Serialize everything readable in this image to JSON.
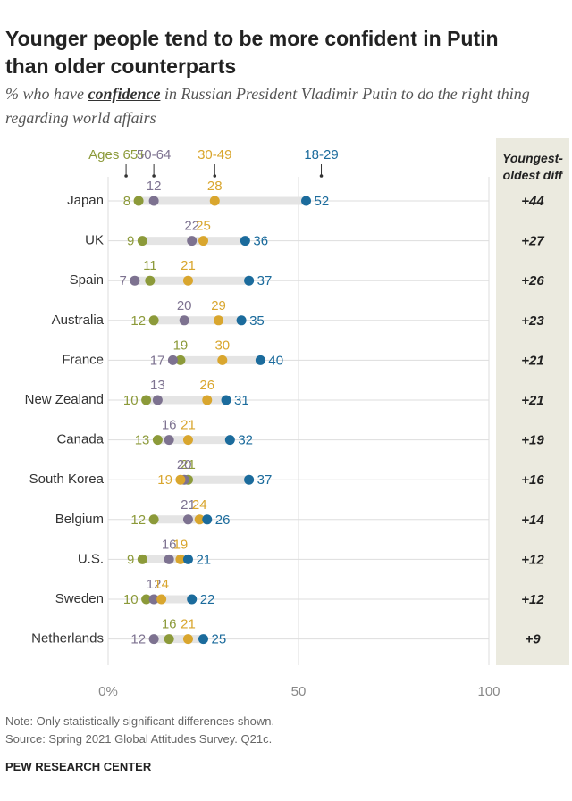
{
  "chart_data": {
    "type": "dot",
    "title": "Younger people tend to be more confident in Putin than older counterparts",
    "subtitle": [
      "% who have ",
      "confidence",
      " in Russian President Vladimir Putin to do the right thing regarding world affairs"
    ],
    "categories": [
      "Japan",
      "UK",
      "Spain",
      "Australia",
      "France",
      "New Zealand",
      "Canada",
      "South Korea",
      "Belgium",
      "U.S.",
      "Sweden",
      "Netherlands"
    ],
    "series": [
      {
        "name": "Ages 65+",
        "color": "#8c9a3a",
        "values": [
          8,
          9,
          11,
          12,
          19,
          10,
          13,
          21,
          12,
          9,
          10,
          16
        ]
      },
      {
        "name": "50-64",
        "color": "#7d7290",
        "values": [
          12,
          22,
          7,
          20,
          17,
          13,
          16,
          20,
          21,
          16,
          12,
          12
        ]
      },
      {
        "name": "30-49",
        "color": "#d9a62e",
        "values": [
          28,
          25,
          21,
          29,
          30,
          26,
          21,
          19,
          24,
          19,
          14,
          21
        ]
      },
      {
        "name": "18-29",
        "color": "#1b6b9c",
        "values": [
          52,
          36,
          37,
          35,
          40,
          31,
          32,
          37,
          26,
          21,
          22,
          25
        ]
      }
    ],
    "diff": {
      "header": "Youngest-oldest diff",
      "values": [
        44,
        27,
        26,
        23,
        21,
        21,
        19,
        16,
        14,
        12,
        12,
        9
      ],
      "value_labels": [
        "+44",
        "+27",
        "+26",
        "+23",
        "+21",
        "+21",
        "+19",
        "+16",
        "+14",
        "+12",
        "+12",
        "+9"
      ]
    },
    "xlim": [
      0,
      100
    ],
    "xticks": [
      {
        "value": 0,
        "label": "0%"
      },
      50,
      100
    ],
    "grid": true
  },
  "footer": {
    "note": "Note: Only statistically significant differences shown.",
    "source": "Source: Spring 2021 Global Attitudes Survey. Q21c.",
    "credit": "PEW RESEARCH CENTER"
  }
}
